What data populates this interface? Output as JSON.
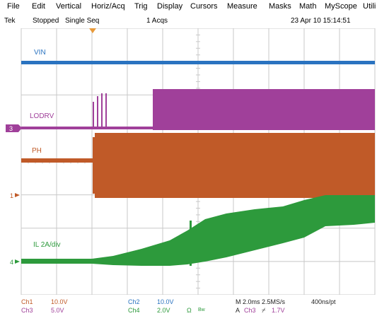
{
  "menu": {
    "items": [
      "File",
      "Edit",
      "Vertical",
      "Horiz/Acq",
      "Trig",
      "Display",
      "Cursors",
      "Measure",
      "Masks",
      "Math",
      "MyScope",
      "Utili"
    ]
  },
  "status": {
    "brand": "Tek",
    "run_state": "Stopped",
    "mode": "Single Seq",
    "acqs": "1 Acqs",
    "datetime": "23 Apr 10 15:14:51"
  },
  "channels": {
    "vin_label": "VIN",
    "lodrv_label": "LODRV",
    "ph_label": "PH",
    "il_label": "IL 2A/div",
    "marker_3": "3",
    "marker_1": "1",
    "marker_4": "4"
  },
  "colors": {
    "ch1": "#c05a28",
    "ch2": "#2a73c0",
    "ch3": "#a0409a",
    "ch4": "#2d9a3c",
    "grid": "#c8c8c8",
    "trigger": "#e89a3a"
  },
  "readout": {
    "ch1": {
      "name": "Ch1",
      "value": "10.0V"
    },
    "ch3": {
      "name": "Ch3",
      "value": "5.0V"
    },
    "ch2": {
      "name": "Ch2",
      "value": "10.0V"
    },
    "ch4": {
      "name": "Ch4",
      "value": "2.0V"
    },
    "ohm_symbol": "Ω",
    "bw_symbol": "Bw",
    "timebase": "M 2.0ms 2.5MS/s",
    "resolution": "400ns/pt",
    "trigger_prefix": "A",
    "trigger_source": "Ch3",
    "trigger_slope": "⌿",
    "trigger_level": "1.7V"
  }
}
